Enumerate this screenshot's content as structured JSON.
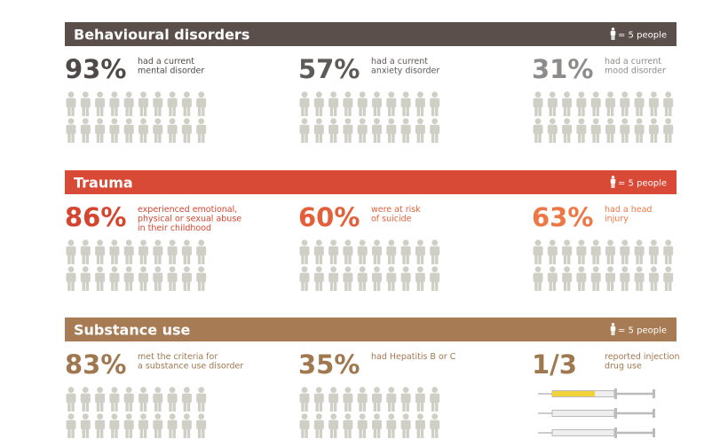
{
  "sections": [
    {
      "title": "Behavioural disorders",
      "legend": "= 5 people",
      "color": "#5b4f4b",
      "stats": [
        {
          "value": "93%",
          "description": [
            "had a current",
            "mental disorder"
          ],
          "color": "#4f4a48",
          "icon": "person"
        },
        {
          "value": "57%",
          "description": [
            "had a current",
            "anxiety disorder"
          ],
          "color": "#5e5a58",
          "icon": "person"
        },
        {
          "value": "31%",
          "description": [
            "had a current",
            "mood disorder"
          ],
          "color": "#8e8c8a",
          "icon": "person"
        }
      ]
    },
    {
      "title": "Trauma",
      "legend": "= 5 people",
      "color": "#d84a36",
      "stats": [
        {
          "value": "86%",
          "description": [
            "experienced emotional,",
            "physical or sexual abuse",
            "in their childhood"
          ],
          "color": "#d5452f",
          "icon": "person"
        },
        {
          "value": "60%",
          "description": [
            "were at risk",
            "of suicide"
          ],
          "color": "#e4603a",
          "icon": "person"
        },
        {
          "value": "63%",
          "description": [
            "had a head",
            "injury"
          ],
          "color": "#ee7845",
          "icon": "person"
        }
      ]
    },
    {
      "title": "Substance use",
      "legend": "= 5 people",
      "color": "#a77c55",
      "stats": [
        {
          "value": "83%",
          "description": [
            "met the criteria for",
            "a substance use disorder"
          ],
          "color": "#a0784f",
          "icon": "person"
        },
        {
          "value": "35%",
          "description": [
            "had Hepatitis B or C"
          ],
          "color": "#a0784f",
          "icon": "person"
        },
        {
          "value": "1/3",
          "description": [
            "reported injection",
            "drug use"
          ],
          "color": "#a0784f",
          "icon": "syringe"
        }
      ]
    }
  ]
}
